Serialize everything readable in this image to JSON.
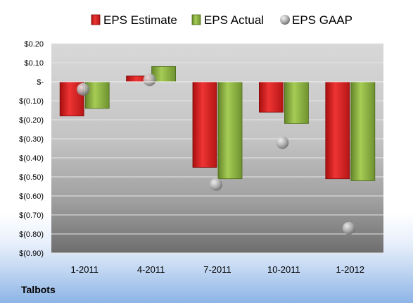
{
  "company": "Talbots",
  "chart_data": {
    "type": "bar",
    "categories": [
      "1-2011",
      "4-2011",
      "7-2011",
      "10-2011",
      "1-2012"
    ],
    "series": [
      {
        "name": "EPS Estimate",
        "kind": "bar",
        "color": "#e02020",
        "values": [
          -0.18,
          0.03,
          -0.45,
          -0.16,
          -0.51
        ]
      },
      {
        "name": "EPS Actual",
        "kind": "bar",
        "color": "#8ab43c",
        "values": [
          -0.14,
          0.08,
          -0.51,
          -0.22,
          -0.52
        ]
      },
      {
        "name": "EPS GAAP",
        "kind": "marker",
        "color": "#b8b8b8",
        "values": [
          -0.04,
          0.01,
          -0.54,
          -0.32,
          -0.77
        ]
      }
    ],
    "ylim": [
      -0.9,
      0.2
    ],
    "yticks": [
      0.2,
      0.1,
      0,
      -0.1,
      -0.2,
      -0.3,
      -0.4,
      -0.5,
      -0.6,
      -0.7,
      -0.8,
      -0.9
    ],
    "ytick_labels": [
      "$0.20",
      "$0.10",
      "$-",
      "$(0.10)",
      "$(0.20)",
      "$(0.30)",
      "$(0.40)",
      "$(0.50)",
      "$(0.60)",
      "$(0.70)",
      "$(0.80)",
      "$(0.90)"
    ],
    "legend_position": "top",
    "grid": true
  }
}
